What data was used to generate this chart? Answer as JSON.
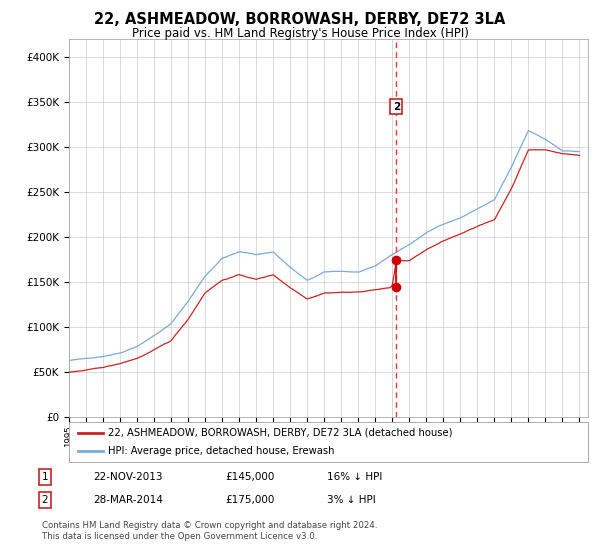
{
  "title": "22, ASHMEADOW, BORROWASH, DERBY, DE72 3LA",
  "subtitle": "Price paid vs. HM Land Registry's House Price Index (HPI)",
  "title_fontsize": 10.5,
  "subtitle_fontsize": 8.5,
  "background_color": "#ffffff",
  "plot_bg_color": "#ffffff",
  "grid_color": "#cccccc",
  "hpi_line_color": "#7aaadd",
  "price_line_color": "#cc2222",
  "dashed_line_color": "#ee3333",
  "marker_color": "#cc0000",
  "ylim": [
    0,
    420000
  ],
  "yticks": [
    0,
    50000,
    100000,
    150000,
    200000,
    250000,
    300000,
    350000,
    400000
  ],
  "ytick_labels": [
    "£0",
    "£50K",
    "£100K",
    "£150K",
    "£200K",
    "£250K",
    "£300K",
    "£350K",
    "£400K"
  ],
  "year_start": 1995,
  "year_end": 2025,
  "transaction1_x": 2013.89,
  "transaction1_price": 145000,
  "transaction2_x": 2014.24,
  "transaction2_price": 175000,
  "legend_line1": "22, ASHMEADOW, BORROWASH, DERBY, DE72 3LA (detached house)",
  "legend_line2": "HPI: Average price, detached house, Erewash",
  "footnote_line1": "Contains HM Land Registry data © Crown copyright and database right 2024.",
  "footnote_line2": "This data is licensed under the Open Government Licence v3.0.",
  "table_row1": [
    "1",
    "22-NOV-2013",
    "£145,000",
    "16% ↓ HPI"
  ],
  "table_row2": [
    "2",
    "28-MAR-2014",
    "£175,000",
    "3% ↓ HPI"
  ],
  "hpi_key_years": [
    1995,
    1996,
    1997,
    1998,
    1999,
    2000,
    2001,
    2002,
    2003,
    2004,
    2005,
    2006,
    2007,
    2008,
    2009,
    2010,
    2011,
    2012,
    2013,
    2014,
    2015,
    2016,
    2017,
    2018,
    2019,
    2020,
    2021,
    2022,
    2023,
    2024,
    2025
  ],
  "hpi_key_vals": [
    63000,
    65000,
    68000,
    72000,
    80000,
    92000,
    105000,
    130000,
    158000,
    178000,
    185000,
    182000,
    185000,
    168000,
    153000,
    162000,
    163000,
    162000,
    168000,
    181000,
    192000,
    205000,
    215000,
    222000,
    232000,
    242000,
    278000,
    318000,
    308000,
    296000,
    295000
  ],
  "price_key_years": [
    1995,
    1996,
    1997,
    1998,
    1999,
    2000,
    2001,
    2002,
    2003,
    2004,
    2005,
    2006,
    2007,
    2008,
    2009,
    2010,
    2011,
    2012,
    2013,
    2013.89,
    2014,
    2014.24,
    2015,
    2016,
    2017,
    2018,
    2019,
    2020,
    2021,
    2022,
    2023,
    2024,
    2025
  ],
  "price_key_vals": [
    50000,
    52000,
    55000,
    59000,
    65000,
    74000,
    84000,
    108000,
    138000,
    152000,
    158000,
    153000,
    158000,
    144000,
    132000,
    139000,
    140000,
    140000,
    143000,
    145000,
    148000,
    175000,
    175000,
    187000,
    196000,
    204000,
    213000,
    220000,
    255000,
    298000,
    298000,
    294000,
    292000
  ]
}
